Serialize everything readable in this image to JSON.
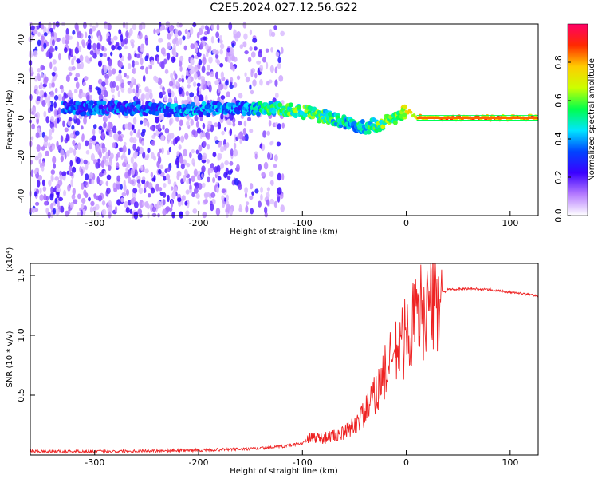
{
  "title": "C2E5.2024.027.12.56.G22",
  "chart_data": [
    {
      "type": "heatmap",
      "xlabel": "Height of straight line (km)",
      "ylabel": "Frequency (Hz)",
      "xlim": [
        -362,
        127
      ],
      "ylim": [
        -50,
        48
      ],
      "xticks": [
        -300,
        -200,
        -100,
        0,
        100
      ],
      "yticks": [
        -40,
        -20,
        0,
        20,
        40
      ],
      "colorbar": {
        "label": "Normalized spectral amplitude",
        "range": [
          0.0,
          1.0
        ],
        "ticks": [
          0.0,
          0.2,
          0.4,
          0.6,
          0.8
        ],
        "colormap": "rainbow",
        "colors": [
          "#ffffff",
          "#b57bff",
          "#3b00ff",
          "#0044ff",
          "#00e5ff",
          "#00ff4c",
          "#ccff00",
          "#ffcc00",
          "#ff2a00",
          "#ff0066"
        ]
      },
      "signal_track": {
        "x": [
          -330,
          -260,
          -225,
          -160,
          -130,
          -110,
          -90,
          -75,
          -60,
          -40,
          -25,
          -10,
          0,
          10,
          40,
          127
        ],
        "y": [
          5,
          5,
          4,
          5,
          5,
          4,
          2,
          0,
          -2,
          -5,
          -3,
          0,
          4,
          0,
          0,
          0
        ],
        "amplitude": [
          0.3,
          0.3,
          0.35,
          0.35,
          0.5,
          0.55,
          0.55,
          0.5,
          0.45,
          0.45,
          0.55,
          0.6,
          0.7,
          0.75,
          0.8,
          0.8
        ]
      },
      "grid": false
    },
    {
      "type": "line",
      "xlabel": "Height of straight line (km)",
      "ylabel": "SNR (10 * v/v)",
      "yscale_label": "(x10⁴)",
      "xlim": [
        -362,
        127
      ],
      "ylim": [
        0.0,
        1.6
      ],
      "xticks": [
        -300,
        -200,
        -100,
        0,
        100
      ],
      "yticks": [
        0.5,
        1.0,
        1.5
      ],
      "series": [
        {
          "color": "#ee2222",
          "x": [
            -362,
            -300,
            -200,
            -150,
            -120,
            -100,
            -90,
            -80,
            -70,
            -60,
            -50,
            -40,
            -30,
            -20,
            -10,
            0,
            10,
            15,
            20,
            30,
            40,
            60,
            80,
            100,
            127
          ],
          "y": [
            0.03,
            0.03,
            0.04,
            0.05,
            0.07,
            0.1,
            0.15,
            0.14,
            0.16,
            0.18,
            0.25,
            0.35,
            0.5,
            0.7,
            0.85,
            1.0,
            1.15,
            1.2,
            1.25,
            1.33,
            1.38,
            1.39,
            1.38,
            1.36,
            1.33
          ]
        }
      ],
      "grid": false
    }
  ]
}
